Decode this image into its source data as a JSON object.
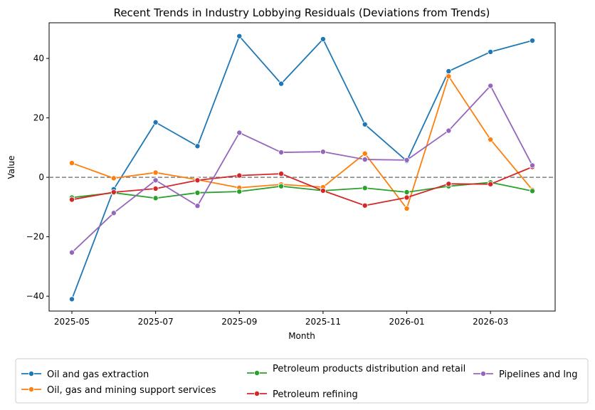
{
  "chart_data": {
    "type": "line",
    "title": "Recent Trends in Industry Lobbying Residuals (Deviations from Trends)",
    "xlabel": "Month",
    "ylabel": "Value",
    "x": [
      "2025-05",
      "2025-06",
      "2025-07",
      "2025-08",
      "2025-09",
      "2025-10",
      "2025-11",
      "2025-12",
      "2026-01",
      "2026-02",
      "2026-03",
      "2026-04"
    ],
    "x_tick_labels": [
      "2025-05",
      "2025-07",
      "2025-09",
      "2025-11",
      "2026-01",
      "2026-03"
    ],
    "x_tick_values": [
      "2025-05",
      "2025-07",
      "2025-09",
      "2025-11",
      "2026-01",
      "2026-03"
    ],
    "ylim": [
      -45,
      52
    ],
    "y_ticks": [
      -40,
      -20,
      0,
      20,
      40
    ],
    "y_tick_labels": [
      "−40",
      "−20",
      "0",
      "20",
      "40"
    ],
    "reference_line": {
      "y": 0,
      "style": "dashed",
      "color": "#808080"
    },
    "grid": false,
    "legend_position": "bottom",
    "series": [
      {
        "name": "Oil and gas extraction",
        "color": "#1f77b4",
        "values": [
          -41,
          -4,
          18.5,
          10.5,
          47.5,
          31.5,
          46.5,
          17.8,
          5.5,
          35.7,
          42.2,
          46
        ]
      },
      {
        "name": "Oil, gas and mining support services",
        "color": "#ff7f0e",
        "values": [
          4.8,
          -0.3,
          1.6,
          -0.8,
          -3.5,
          -2.4,
          -3.3,
          8,
          -10.5,
          34,
          12.7,
          -4.2
        ]
      },
      {
        "name": "Petroleum products distribution and retail",
        "color": "#2ca02c",
        "values": [
          -6.8,
          -5.2,
          -7,
          -5.2,
          -4.8,
          -3,
          -4.5,
          -3.6,
          -5,
          -3,
          -1.7,
          -4.6
        ]
      },
      {
        "name": "Petroleum refining",
        "color": "#d62728",
        "values": [
          -7.5,
          -5,
          -3.8,
          -1,
          0.6,
          1.2,
          -4.5,
          -9.5,
          -6.8,
          -2.2,
          -2.3,
          3.5
        ]
      },
      {
        "name": "Pipelines and lng",
        "color": "#9467bd",
        "values": [
          -25.3,
          -12,
          -1,
          -9.6,
          15,
          8.4,
          8.6,
          6,
          5.8,
          15.7,
          30.8,
          4
        ]
      }
    ]
  }
}
